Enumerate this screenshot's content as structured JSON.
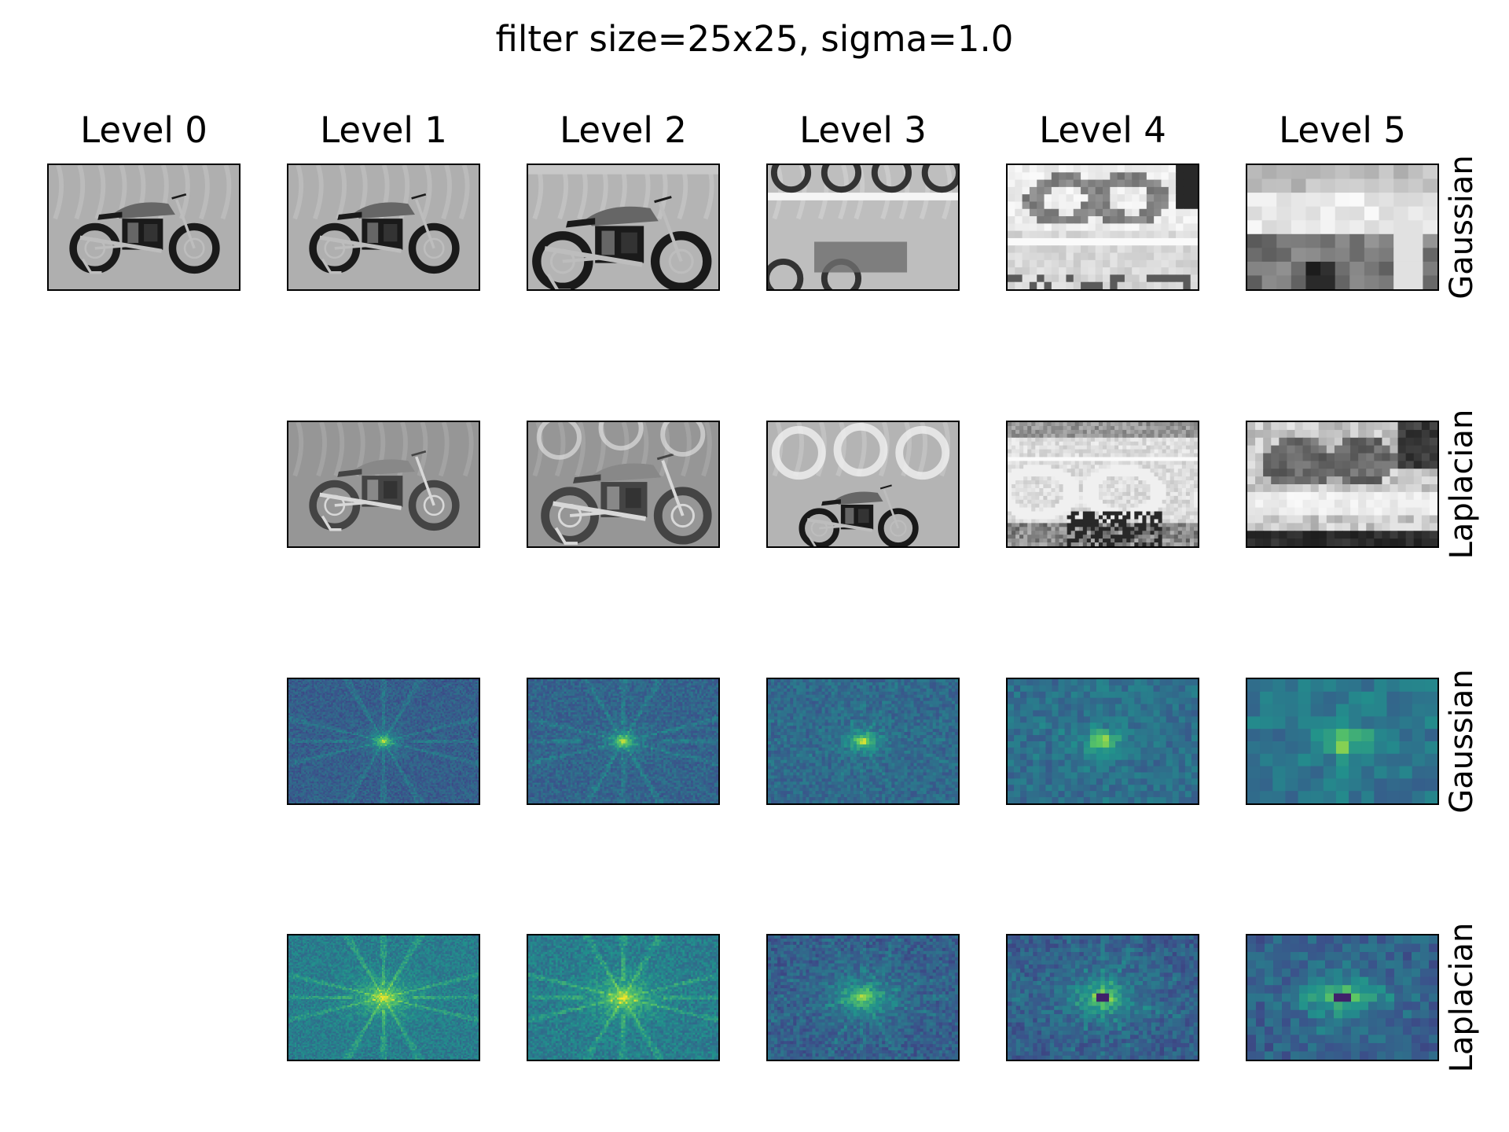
{
  "title": "filter size=25x25, sigma=1.0",
  "columns": [
    "Level 0",
    "Level 1",
    "Level 2",
    "Level 3",
    "Level 4",
    "Level 5"
  ],
  "rows": [
    {
      "label": "Gaussian",
      "kind": "image-gaussian",
      "levels": [
        0,
        1,
        2,
        3,
        4,
        5
      ]
    },
    {
      "label": "Laplacian",
      "kind": "image-laplacian",
      "levels": [
        1,
        2,
        3,
        4,
        5
      ]
    },
    {
      "label": "Gaussian",
      "kind": "spectrum-gaussian",
      "levels": [
        1,
        2,
        3,
        4,
        5
      ]
    },
    {
      "label": "Laplacian",
      "kind": "spectrum-laplacian",
      "levels": [
        1,
        2,
        3,
        4,
        5
      ]
    }
  ],
  "colors": {
    "viridis_dark": "#440154",
    "viridis_mid": "#21918c",
    "viridis_bright": "#fde725",
    "gray_bg": "#a8a8a8"
  }
}
